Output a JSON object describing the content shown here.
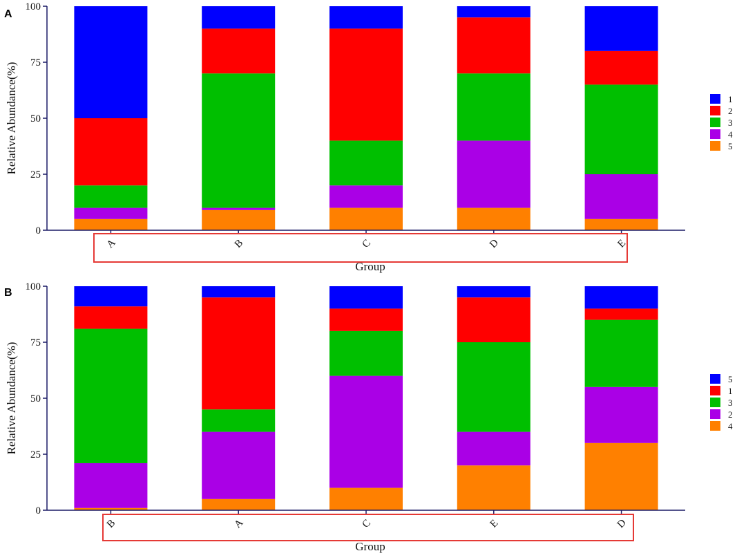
{
  "chart_data": [
    {
      "panel": "A",
      "type": "bar",
      "stacked": true,
      "xlabel": "Group",
      "ylabel": "Relative Abundance(%)",
      "ylim": [
        0,
        100
      ],
      "yticks": [
        "0",
        "25",
        "50",
        "75",
        "100"
      ],
      "categories": [
        "A",
        "B",
        "C",
        "D",
        "E"
      ],
      "series": [
        {
          "name": "5",
          "color": "#ff8000",
          "values": [
            5,
            9,
            10,
            10,
            5
          ]
        },
        {
          "name": "4",
          "color": "#aa00e6",
          "values": [
            5,
            1,
            10,
            30,
            20
          ]
        },
        {
          "name": "3",
          "color": "#00bf00",
          "values": [
            10,
            60,
            20,
            30,
            40
          ]
        },
        {
          "name": "2",
          "color": "#ff0000",
          "values": [
            30,
            20,
            50,
            25,
            15
          ]
        },
        {
          "name": "1",
          "color": "#0000ff",
          "values": [
            50,
            10,
            10,
            5,
            20
          ]
        }
      ],
      "legend_order": [
        "1",
        "2",
        "3",
        "4",
        "5"
      ],
      "legend_position": "right"
    },
    {
      "panel": "B",
      "type": "bar",
      "stacked": true,
      "xlabel": "Group",
      "ylabel": "Relative Abundance(%)",
      "ylim": [
        0,
        100
      ],
      "yticks": [
        "0",
        "25",
        "50",
        "75",
        "100"
      ],
      "categories": [
        "B",
        "A",
        "C",
        "E",
        "D"
      ],
      "series": [
        {
          "name": "4",
          "color": "#ff8000",
          "values": [
            1,
            5,
            10,
            20,
            30
          ]
        },
        {
          "name": "2",
          "color": "#aa00e6",
          "values": [
            20,
            30,
            50,
            15,
            25
          ]
        },
        {
          "name": "3",
          "color": "#00bf00",
          "values": [
            60,
            10,
            20,
            40,
            30
          ]
        },
        {
          "name": "1",
          "color": "#ff0000",
          "values": [
            10,
            50,
            10,
            20,
            5
          ]
        },
        {
          "name": "5",
          "color": "#0000ff",
          "values": [
            9,
            5,
            10,
            5,
            10
          ]
        }
      ],
      "legend_order": [
        "5",
        "1",
        "3",
        "2",
        "4"
      ],
      "legend_position": "right"
    }
  ],
  "highlight_color": "#e53935",
  "axis_color": "#1a1a66"
}
